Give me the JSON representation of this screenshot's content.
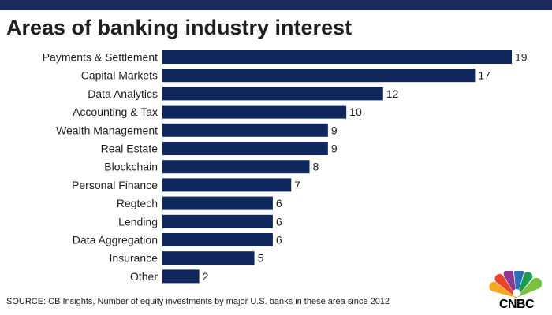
{
  "header": {
    "title": "Areas of banking industry interest"
  },
  "chart_data": {
    "type": "bar",
    "orientation": "horizontal",
    "categories": [
      "Payments & Settlement",
      "Capital Markets",
      "Data Analytics",
      "Accounting & Tax",
      "Wealth Management",
      "Real Estate",
      "Blockchain",
      "Personal Finance",
      "Regtech",
      "Lending",
      "Data Aggregation",
      "Insurance",
      "Other"
    ],
    "values": [
      19,
      17,
      12,
      10,
      9,
      9,
      8,
      7,
      6,
      6,
      6,
      5,
      2
    ],
    "bar_color": "#10275e",
    "xlim": [
      0,
      19
    ],
    "grid": false
  },
  "footer": {
    "source": "SOURCE: CB Insights, Number of equity investments by major U.S. banks in these area since 2012",
    "logo_text": "CNBC"
  },
  "colors": {
    "band": "#1a2a5c",
    "bar": "#10275e",
    "text": "#1f1f1f"
  }
}
